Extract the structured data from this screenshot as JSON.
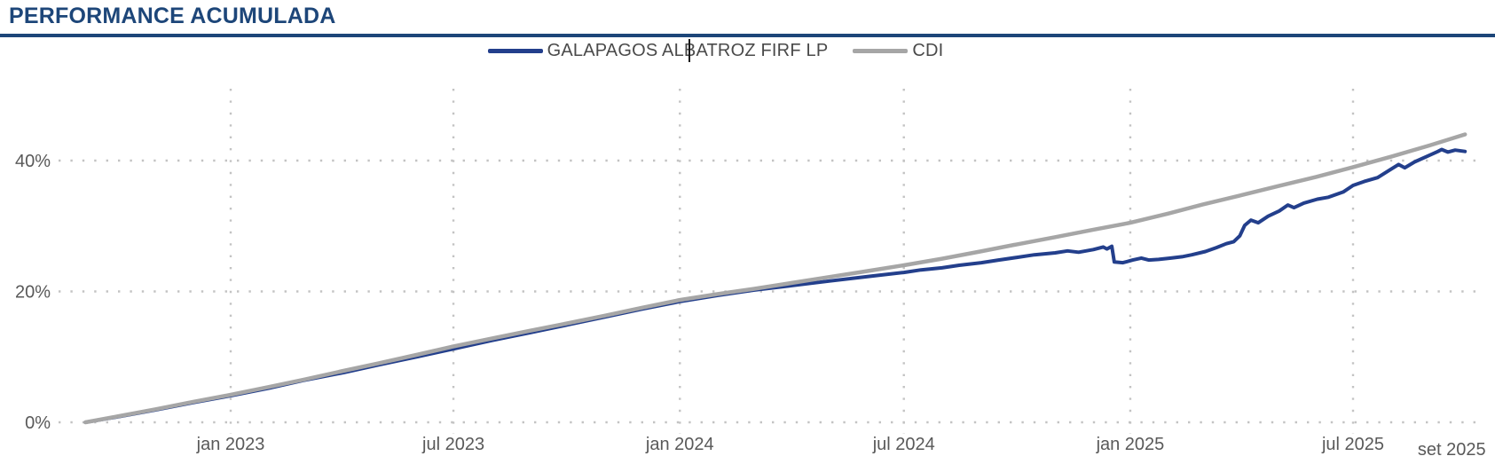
{
  "header": {
    "title": "PERFORMANCE ACUMULADA"
  },
  "legend": {
    "items": [
      {
        "label": "GALAPAGOS ALBATROZ FIRF LP",
        "color": "#233f8c"
      },
      {
        "label": "CDI",
        "color": "#a6a6a6"
      }
    ],
    "cursor_artifact": true
  },
  "colors": {
    "accent_navy": "#1d4679",
    "fund_line": "#233f8c",
    "cdi_line": "#a6a6a6",
    "grid_dots": "#c3c3c3",
    "tick_text": "#595959",
    "legend_text": "#4a4a4a"
  },
  "chart_data": {
    "type": "line",
    "title": "PERFORMANCE ACUMULADA",
    "xlabel": "",
    "ylabel": "",
    "ylim": [
      0,
      48
    ],
    "grid": "dotted",
    "legend_position": "top-center",
    "y_ticks": [
      {
        "label": "0%",
        "value": 0
      },
      {
        "label": "20%",
        "value": 20
      },
      {
        "label": "40%",
        "value": 40
      }
    ],
    "x_ticks": [
      {
        "label": "jan 2023",
        "date": "2023-01-01",
        "gridline": true
      },
      {
        "label": "jul 2023",
        "date": "2023-07-01",
        "gridline": true
      },
      {
        "label": "jan 2024",
        "date": "2024-01-01",
        "gridline": true
      },
      {
        "label": "jul 2024",
        "date": "2024-07-01",
        "gridline": true
      },
      {
        "label": "jan 2025",
        "date": "2025-01-01",
        "gridline": true
      },
      {
        "label": "jul 2025",
        "date": "2025-07-01",
        "gridline": true
      },
      {
        "label": "set 2025",
        "date": "2025-09-30",
        "gridline": false
      }
    ],
    "series": [
      {
        "name": "GALAPAGOS ALBATROZ FIRF LP",
        "color": "#233f8c",
        "stroke_width": 4,
        "points": [
          [
            "2022-09-05",
            0.0
          ],
          [
            "2022-10-03",
            0.9
          ],
          [
            "2022-11-01",
            1.9
          ],
          [
            "2022-12-01",
            3.0
          ],
          [
            "2023-01-02",
            4.1
          ],
          [
            "2023-02-01",
            5.2
          ],
          [
            "2023-03-01",
            6.4
          ],
          [
            "2023-04-03",
            7.6
          ],
          [
            "2023-05-02",
            8.8
          ],
          [
            "2023-06-01",
            10.0
          ],
          [
            "2023-07-03",
            11.3
          ],
          [
            "2023-08-01",
            12.5
          ],
          [
            "2023-09-01",
            13.7
          ],
          [
            "2023-10-02",
            14.9
          ],
          [
            "2023-11-01",
            16.1
          ],
          [
            "2023-12-01",
            17.3
          ],
          [
            "2024-01-02",
            18.5
          ],
          [
            "2024-02-01",
            19.4
          ],
          [
            "2024-03-01",
            20.2
          ],
          [
            "2024-04-01",
            20.9
          ],
          [
            "2024-05-02",
            21.6
          ],
          [
            "2024-06-03",
            22.3
          ],
          [
            "2024-07-01",
            22.9
          ],
          [
            "2024-07-15",
            23.3
          ],
          [
            "2024-08-01",
            23.6
          ],
          [
            "2024-08-15",
            24.0
          ],
          [
            "2024-09-02",
            24.4
          ],
          [
            "2024-09-16",
            24.8
          ],
          [
            "2024-10-01",
            25.2
          ],
          [
            "2024-10-15",
            25.6
          ],
          [
            "2024-11-01",
            25.9
          ],
          [
            "2024-11-11",
            26.2
          ],
          [
            "2024-11-20",
            26.0
          ],
          [
            "2024-12-02",
            26.4
          ],
          [
            "2024-12-10",
            26.8
          ],
          [
            "2024-12-13",
            26.5
          ],
          [
            "2024-12-17",
            26.9
          ],
          [
            "2024-12-19",
            24.5
          ],
          [
            "2024-12-26",
            24.4
          ],
          [
            "2025-01-03",
            24.8
          ],
          [
            "2025-01-10",
            25.1
          ],
          [
            "2025-01-16",
            24.8
          ],
          [
            "2025-01-24",
            24.9
          ],
          [
            "2025-02-03",
            25.1
          ],
          [
            "2025-02-12",
            25.3
          ],
          [
            "2025-02-20",
            25.6
          ],
          [
            "2025-03-03",
            26.1
          ],
          [
            "2025-03-12",
            26.7
          ],
          [
            "2025-03-20",
            27.3
          ],
          [
            "2025-03-26",
            27.6
          ],
          [
            "2025-03-31",
            28.5
          ],
          [
            "2025-04-04",
            30.1
          ],
          [
            "2025-04-09",
            30.9
          ],
          [
            "2025-04-15",
            30.5
          ],
          [
            "2025-04-23",
            31.5
          ],
          [
            "2025-05-02",
            32.3
          ],
          [
            "2025-05-09",
            33.2
          ],
          [
            "2025-05-14",
            32.8
          ],
          [
            "2025-05-22",
            33.5
          ],
          [
            "2025-06-02",
            34.1
          ],
          [
            "2025-06-11",
            34.4
          ],
          [
            "2025-06-23",
            35.2
          ],
          [
            "2025-07-01",
            36.2
          ],
          [
            "2025-07-10",
            36.8
          ],
          [
            "2025-07-21",
            37.4
          ],
          [
            "2025-08-01",
            38.7
          ],
          [
            "2025-08-07",
            39.4
          ],
          [
            "2025-08-12",
            38.9
          ],
          [
            "2025-08-20",
            39.8
          ],
          [
            "2025-09-01",
            40.8
          ],
          [
            "2025-09-08",
            41.4
          ],
          [
            "2025-09-11",
            41.7
          ],
          [
            "2025-09-16",
            41.3
          ],
          [
            "2025-09-22",
            41.6
          ],
          [
            "2025-09-30",
            41.4
          ]
        ]
      },
      {
        "name": "CDI",
        "color": "#a6a6a6",
        "stroke_width": 4.5,
        "points": [
          [
            "2022-09-05",
            0.0
          ],
          [
            "2022-10-01",
            0.9
          ],
          [
            "2022-11-01",
            2.0
          ],
          [
            "2022-12-01",
            3.1
          ],
          [
            "2023-01-01",
            4.2
          ],
          [
            "2023-02-01",
            5.4
          ],
          [
            "2023-03-01",
            6.5
          ],
          [
            "2023-04-01",
            7.8
          ],
          [
            "2023-05-01",
            9.0
          ],
          [
            "2023-06-01",
            10.3
          ],
          [
            "2023-07-01",
            11.6
          ],
          [
            "2023-08-01",
            12.8
          ],
          [
            "2023-09-01",
            14.0
          ],
          [
            "2023-10-01",
            15.1
          ],
          [
            "2023-11-01",
            16.3
          ],
          [
            "2023-12-01",
            17.5
          ],
          [
            "2024-01-01",
            18.7
          ],
          [
            "2024-02-01",
            19.6
          ],
          [
            "2024-03-01",
            20.4
          ],
          [
            "2024-04-01",
            21.3
          ],
          [
            "2024-05-01",
            22.2
          ],
          [
            "2024-06-01",
            23.1
          ],
          [
            "2024-07-01",
            24.0
          ],
          [
            "2024-08-01",
            25.0
          ],
          [
            "2024-09-01",
            26.1
          ],
          [
            "2024-10-01",
            27.2
          ],
          [
            "2024-11-01",
            28.3
          ],
          [
            "2024-12-01",
            29.4
          ],
          [
            "2025-01-01",
            30.5
          ],
          [
            "2025-02-01",
            31.9
          ],
          [
            "2025-03-01",
            33.3
          ],
          [
            "2025-04-01",
            34.7
          ],
          [
            "2025-05-01",
            36.1
          ],
          [
            "2025-06-01",
            37.5
          ],
          [
            "2025-07-01",
            39.0
          ],
          [
            "2025-08-01",
            40.6
          ],
          [
            "2025-09-01",
            42.3
          ],
          [
            "2025-09-30",
            44.0
          ]
        ]
      }
    ]
  }
}
